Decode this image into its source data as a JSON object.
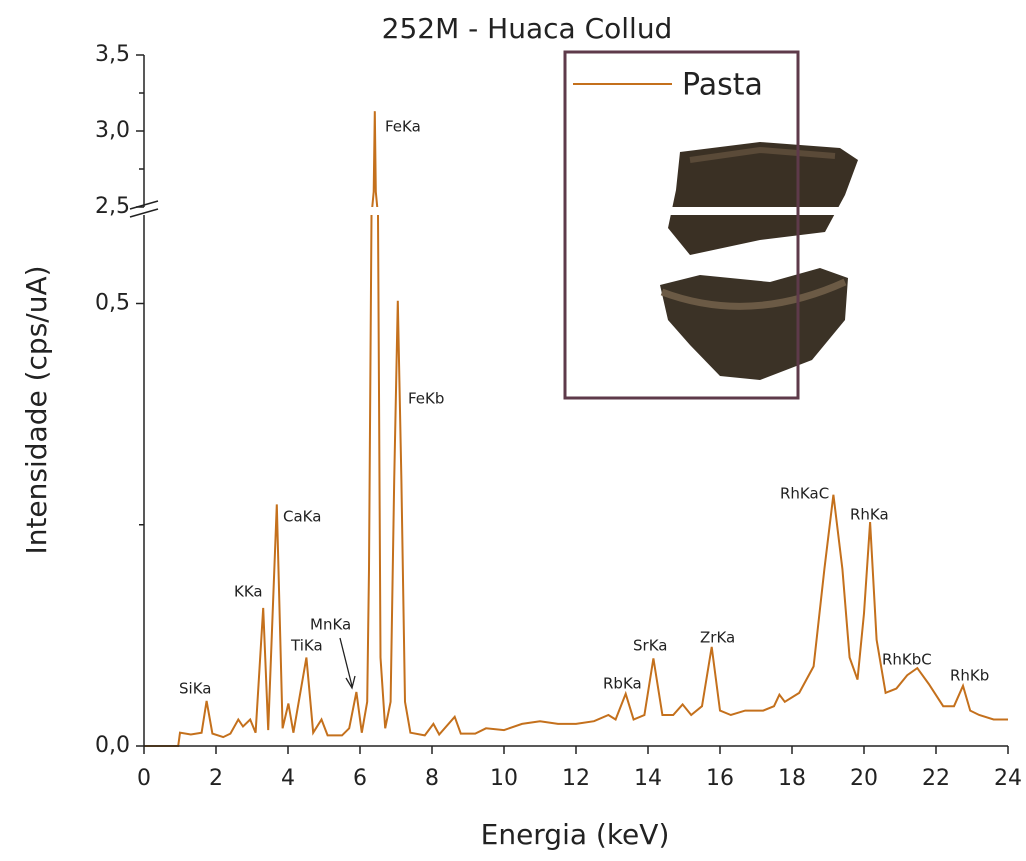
{
  "chart_data": {
    "type": "line",
    "title": "252M - Huaca Collud",
    "x_label": "Energia (keV)",
    "y_label": "Intensidade (cps/uA)",
    "x": [
      0,
      0.95,
      1.0,
      1.3,
      1.6,
      1.74,
      1.9,
      2.2,
      2.4,
      2.62,
      2.75,
      2.95,
      3.1,
      3.31,
      3.45,
      3.69,
      3.85,
      4.01,
      4.15,
      4.51,
      4.7,
      4.93,
      5.1,
      5.5,
      5.7,
      5.9,
      6.05,
      6.2,
      6.25,
      6.32,
      6.38,
      6.41,
      6.44,
      6.5,
      6.57,
      6.7,
      6.85,
      6.95,
      7.05,
      7.15,
      7.25,
      7.4,
      7.8,
      8.04,
      8.2,
      8.63,
      8.8,
      9.2,
      9.5,
      10.0,
      10.5,
      11.0,
      11.5,
      12.0,
      12.5,
      12.9,
      13.1,
      13.38,
      13.6,
      13.9,
      14.15,
      14.4,
      14.7,
      14.96,
      15.2,
      15.5,
      15.77,
      16.0,
      16.3,
      16.7,
      17.2,
      17.5,
      17.65,
      17.8,
      18.2,
      18.6,
      18.9,
      19.15,
      19.4,
      19.6,
      19.82,
      20.0,
      20.17,
      20.35,
      20.6,
      20.9,
      21.2,
      21.48,
      21.8,
      22.2,
      22.5,
      22.75,
      22.95,
      23.2,
      23.6,
      24.0
    ],
    "series": [
      {
        "name": "Pasta",
        "color": "#c4701c",
        "values": [
          0,
          0,
          0.015,
          0.013,
          0.015,
          0.051,
          0.014,
          0.01,
          0.014,
          0.03,
          0.022,
          0.03,
          0.015,
          0.156,
          0.018,
          0.273,
          0.02,
          0.048,
          0.015,
          0.1,
          0.015,
          0.03,
          0.012,
          0.012,
          0.02,
          0.061,
          0.015,
          0.05,
          0.2,
          0.6,
          2.6,
          3.13,
          2.6,
          0.6,
          0.1,
          0.02,
          0.05,
          0.3,
          0.503,
          0.3,
          0.05,
          0.015,
          0.012,
          0.025,
          0.013,
          0.033,
          0.014,
          0.014,
          0.02,
          0.018,
          0.025,
          0.028,
          0.025,
          0.025,
          0.028,
          0.035,
          0.03,
          0.059,
          0.03,
          0.035,
          0.099,
          0.035,
          0.035,
          0.047,
          0.035,
          0.045,
          0.112,
          0.04,
          0.035,
          0.04,
          0.04,
          0.045,
          0.058,
          0.05,
          0.06,
          0.09,
          0.2,
          0.284,
          0.2,
          0.1,
          0.075,
          0.15,
          0.253,
          0.12,
          0.06,
          0.065,
          0.08,
          0.088,
          0.07,
          0.045,
          0.045,
          0.068,
          0.04,
          0.035,
          0.03,
          0.03
        ]
      }
    ],
    "xlim": [
      0,
      24
    ],
    "xticks": [
      0,
      2,
      4,
      6,
      8,
      10,
      12,
      14,
      16,
      18,
      20,
      22,
      24
    ],
    "ylim": [
      0,
      3.5
    ],
    "ybreak": [
      0.6,
      2.5
    ],
    "yticks": [
      {
        "value": 0,
        "label": "0,0"
      },
      {
        "value": 0.5,
        "label": "0,5"
      },
      {
        "value": 2.5,
        "label": "2,5"
      },
      {
        "value": 3.0,
        "label": "3,0"
      },
      {
        "value": 3.5,
        "label": "3,5"
      }
    ],
    "minor_yticks": [
      0.25,
      2.75,
      3.25
    ],
    "annotations": [
      "SiKa",
      "KKa",
      "CaKa",
      "TiKa",
      "MnKa",
      "FeKa",
      "FeKb",
      "RbKa",
      "SrKa",
      "ZrKa",
      "RhKaC",
      "RhKa",
      "RhKbC",
      "RhKb"
    ]
  }
}
